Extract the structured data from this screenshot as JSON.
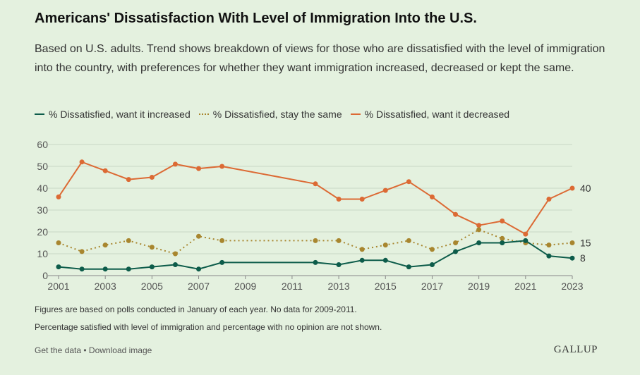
{
  "title": "Americans' Dissatisfaction With Level of Immigration Into the U.S.",
  "subtitle": "Based on U.S. adults. Trend shows breakdown of views for those who are dissatisfied with the level of immigration into the country, with preferences for whether they want immigration increased, decreased or kept the same.",
  "legend": {
    "increased": "% Dissatisfied, want it increased",
    "same": "% Dissatisfied, stay the same",
    "decreased": "% Dissatisfied, want it decreased"
  },
  "notes": {
    "note1": "Figures are based on polls conducted in January of each year. No data for 2009-2011.",
    "note2": "Percentage satisfied with level of immigration and percentage with no opinion are not shown."
  },
  "footer": {
    "get_data": "Get the data",
    "separator": " • ",
    "download": "Download image",
    "logo": "GALLUP"
  },
  "colors": {
    "increased": "#0d5c4a",
    "same": "#a8862f",
    "decreased": "#dc6a34",
    "grid": "#c9d8c4",
    "background": "#e4f1df"
  },
  "chart_data": {
    "type": "line",
    "xlim": [
      2001,
      2023
    ],
    "ylim": [
      0,
      60
    ],
    "x_ticks": [
      2001,
      2003,
      2005,
      2007,
      2009,
      2011,
      2013,
      2015,
      2017,
      2019,
      2021,
      2023
    ],
    "y_ticks": [
      0,
      10,
      20,
      30,
      40,
      50,
      60
    ],
    "grid": "horizontal",
    "legend_position": "top-left",
    "series": [
      {
        "key": "decreased",
        "name": "% Dissatisfied, want it decreased",
        "style": "solid",
        "end_label": "40",
        "points": [
          [
            2001,
            36
          ],
          [
            2002,
            52
          ],
          [
            2003,
            48
          ],
          [
            2004,
            44
          ],
          [
            2005,
            45
          ],
          [
            2006,
            51
          ],
          [
            2007,
            49
          ],
          [
            2008,
            50
          ],
          [
            2012,
            42
          ],
          [
            2013,
            35
          ],
          [
            2014,
            35
          ],
          [
            2015,
            39
          ],
          [
            2016,
            43
          ],
          [
            2017,
            36
          ],
          [
            2018,
            28
          ],
          [
            2019,
            23
          ],
          [
            2020,
            25
          ],
          [
            2021,
            19
          ],
          [
            2022,
            35
          ],
          [
            2023,
            40
          ]
        ]
      },
      {
        "key": "same",
        "name": "% Dissatisfied, stay the same",
        "style": "dotted",
        "end_label": "15",
        "points": [
          [
            2001,
            15
          ],
          [
            2002,
            11
          ],
          [
            2003,
            14
          ],
          [
            2004,
            16
          ],
          [
            2005,
            13
          ],
          [
            2006,
            10
          ],
          [
            2007,
            18
          ],
          [
            2008,
            16
          ],
          [
            2012,
            16
          ],
          [
            2013,
            16
          ],
          [
            2014,
            12
          ],
          [
            2015,
            14
          ],
          [
            2016,
            16
          ],
          [
            2017,
            12
          ],
          [
            2018,
            15
          ],
          [
            2019,
            21
          ],
          [
            2020,
            17
          ],
          [
            2021,
            15
          ],
          [
            2022,
            14
          ],
          [
            2023,
            15
          ]
        ]
      },
      {
        "key": "increased",
        "name": "% Dissatisfied, want it increased",
        "style": "solid",
        "end_label": "8",
        "points": [
          [
            2001,
            4
          ],
          [
            2002,
            3
          ],
          [
            2003,
            3
          ],
          [
            2004,
            3
          ],
          [
            2005,
            4
          ],
          [
            2006,
            5
          ],
          [
            2007,
            3
          ],
          [
            2008,
            6
          ],
          [
            2012,
            6
          ],
          [
            2013,
            5
          ],
          [
            2014,
            7
          ],
          [
            2015,
            7
          ],
          [
            2016,
            4
          ],
          [
            2017,
            5
          ],
          [
            2018,
            11
          ],
          [
            2019,
            15
          ],
          [
            2020,
            15
          ],
          [
            2021,
            16
          ],
          [
            2022,
            9
          ],
          [
            2023,
            8
          ]
        ]
      }
    ]
  }
}
